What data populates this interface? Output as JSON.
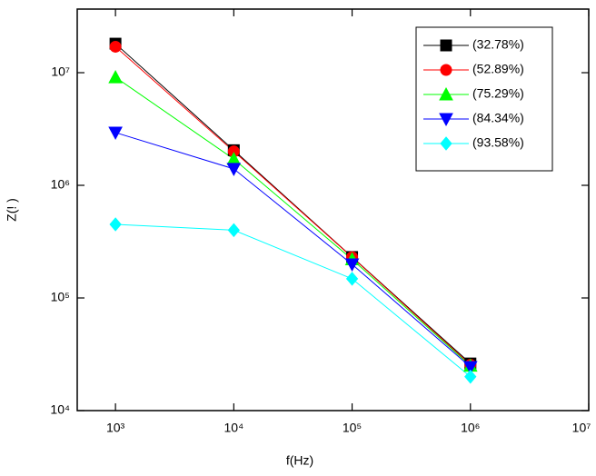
{
  "chart_data": {
    "type": "line",
    "x_label": "f(Hz)",
    "y_label": "Z(! )",
    "x_scale": "log",
    "y_scale": "log",
    "x": [
      1000,
      10000,
      100000,
      1000000
    ],
    "series": [
      {
        "name": "(32.78%)",
        "color": "#000000",
        "marker": "square",
        "values": [
          18100000,
          2050000,
          231000,
          26200
        ]
      },
      {
        "name": "(52.89%)",
        "color": "#ff0000",
        "marker": "circle",
        "values": [
          17000000,
          2000000,
          230000,
          25500
        ]
      },
      {
        "name": "(75.29%)",
        "color": "#00ff00",
        "marker": "triangle-up",
        "values": [
          9100000,
          1710000,
          220000,
          25000
        ]
      },
      {
        "name": "(84.34%)",
        "color": "#0000ff",
        "marker": "triangle-down",
        "values": [
          2940000,
          1400000,
          199000,
          24400
        ]
      },
      {
        "name": "(93.58%)",
        "color": "#00ffff",
        "marker": "diamond",
        "values": [
          450000,
          400000,
          148000,
          20000
        ]
      }
    ],
    "xlim": [
      475,
      10000000
    ],
    "ylim": [
      10000,
      36700000
    ],
    "xticks": [
      {
        "value": 1000,
        "label": "10³"
      },
      {
        "value": 10000,
        "label": "10⁴"
      },
      {
        "value": 100000,
        "label": "10⁵"
      },
      {
        "value": 1000000,
        "label": "10⁶"
      },
      {
        "value": 10000000,
        "label": "10⁷"
      }
    ],
    "yticks": [
      {
        "value": 10000,
        "label": "10⁴"
      },
      {
        "value": 100000,
        "label": "10⁵"
      },
      {
        "value": 1000000,
        "label": "10⁶"
      },
      {
        "value": 10000000,
        "label": "10⁷"
      }
    ],
    "legend": "upper right",
    "grid": false
  }
}
